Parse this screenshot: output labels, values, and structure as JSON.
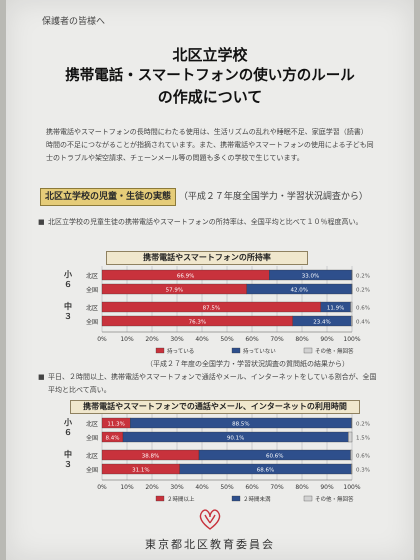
{
  "header": {
    "addressee": "保護者の皆様へ",
    "title_lines": [
      "北区立学校",
      "携帯電話・スマートフォンの使い方のルール",
      "の作成について"
    ]
  },
  "intro": "携帯電話やスマートフォンの長時間にわたる使用は、生活リズムの乱れや睡眠不足、家庭学習（読書）時間の不足につながることが指摘されています。また、携帯電話やスマートフォンの使用による子ども同士のトラブルや架空請求、チェーンメール等の問題も多くの学校で生じています。",
  "section": {
    "heading": "北区立学校の児童・生徒の実態",
    "source": "（平成２７年度全国学力・学習状況調査から）"
  },
  "bullet1": "北区立学校の児童生徒の携帯電話やスマートフォンの所持率は、全国平均と比べて１０％程度高い。",
  "bullet2": "平日、２時間以上、携帯電話やスマートフォンで通話やメール、インターネットをしている割合が、全国平均と比べて高い。",
  "chart_note": "（平成２７年度の全国学力・学習状況調査の質問紙の結果から）",
  "organization": "東京都北区教育委員会",
  "colors": {
    "red": "#c8323c",
    "blue": "#2e4f8c",
    "gray": "#d2d2d2"
  },
  "chart_data": [
    {
      "type": "bar",
      "orientation": "horizontal",
      "stacked": true,
      "title": "携帯電話やスマートフォンの所持率",
      "groups": [
        {
          "label": "小６",
          "rows": [
            "北区",
            "全国"
          ]
        },
        {
          "label": "中３",
          "rows": [
            "北区",
            "全国"
          ]
        }
      ],
      "categories": [
        "小６ 北区",
        "小６ 全国",
        "中３ 北区",
        "中３ 全国"
      ],
      "row_labels": [
        "北区",
        "全国",
        "北区",
        "全国"
      ],
      "series": [
        {
          "name": "持っている",
          "values": [
            66.9,
            57.9,
            87.5,
            76.3
          ]
        },
        {
          "name": "持っていない",
          "values": [
            33.0,
            42.0,
            11.9,
            23.4
          ]
        },
        {
          "name": "その他・無回答",
          "values": [
            0.2,
            0.2,
            0.6,
            0.4
          ]
        }
      ],
      "value_labels": [
        [
          "66.9%",
          "57.9%",
          "87.5%",
          "76.3%"
        ],
        [
          "33.0%",
          "42.0%",
          "11.9%",
          "23.4%"
        ],
        [
          "0.2%",
          "0.2%",
          "0.6%",
          "0.4%"
        ]
      ],
      "xlim": [
        0,
        100
      ],
      "xticks": [
        "0%",
        "10%",
        "20%",
        "30%",
        "40%",
        "50%",
        "60%",
        "70%",
        "80%",
        "90%",
        "100%"
      ],
      "legend_position": "bottom"
    },
    {
      "type": "bar",
      "orientation": "horizontal",
      "stacked": true,
      "title": "携帯電話やスマートフォンでの通話やメール、インターネットの利用時間",
      "groups": [
        {
          "label": "小６",
          "rows": [
            "北区",
            "全国"
          ]
        },
        {
          "label": "中３",
          "rows": [
            "北区",
            "全国"
          ]
        }
      ],
      "categories": [
        "小６ 北区",
        "小６ 全国",
        "中３ 北区",
        "中３ 全国"
      ],
      "row_labels": [
        "北区",
        "全国",
        "北区",
        "全国"
      ],
      "series": [
        {
          "name": "２時間以上",
          "values": [
            11.3,
            8.4,
            38.8,
            31.1
          ]
        },
        {
          "name": "２時間未満",
          "values": [
            88.5,
            90.1,
            60.6,
            68.6
          ]
        },
        {
          "name": "その他・無回答",
          "values": [
            0.2,
            1.5,
            0.6,
            0.3
          ]
        }
      ],
      "value_labels": [
        [
          "11.3%",
          "8.4%",
          "38.8%",
          "31.1%"
        ],
        [
          "88.5%",
          "90.1%",
          "60.6%",
          "68.6%"
        ],
        [
          "0.2%",
          "1.5%",
          "0.6%",
          "0.3%"
        ]
      ],
      "xlim": [
        0,
        100
      ],
      "xticks": [
        "0%",
        "10%",
        "20%",
        "30%",
        "40%",
        "50%",
        "60%",
        "70%",
        "80%",
        "90%",
        "100%"
      ],
      "legend_position": "bottom"
    }
  ]
}
